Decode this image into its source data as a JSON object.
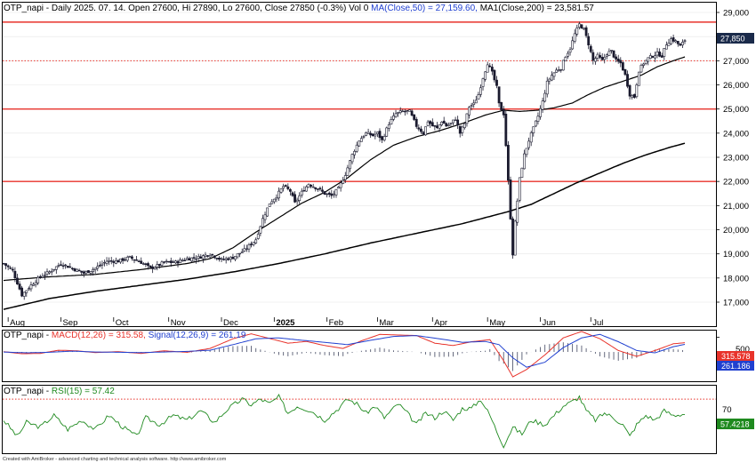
{
  "chart_data": [
    {
      "type": "candlestick",
      "header": {
        "ticker": "OTP_napi",
        "period": "Daily",
        "date": "2025. 07. 14.",
        "open_label": "Open 27600,",
        "high_label": "Hi 27890,",
        "low_label": "Lo 27600,",
        "close_label": "Close 27850 (-0.3%)",
        "vol_label": "Vol 0",
        "ma50_label": "MA(Close,50) = 27,159.60,",
        "ma200_label": "MA1(Close,200) = 23,581.57"
      },
      "last_price_badge": "27,850",
      "ylim": [
        16300,
        29200
      ],
      "y_ticks": [
        17000,
        18000,
        19000,
        20000,
        21000,
        22000,
        23000,
        24000,
        25000,
        26000,
        27000,
        28000,
        29000
      ],
      "y_tick_labels": [
        "17,000",
        "18,000",
        "19,000",
        "20,000",
        "21,000",
        "22,000",
        "23,000",
        "24,000",
        "25,000",
        "26,000",
        "27,000",
        "28,000",
        "29,000"
      ],
      "x_months": [
        "Aug",
        "Sep",
        "Oct",
        "Nov",
        "Dec",
        "2025",
        "Feb",
        "Mar",
        "Apr",
        "May",
        "Jun",
        "Jul"
      ],
      "horizontal_levels": [
        {
          "value": 28600,
          "style": "solid",
          "color": "#e8332b"
        },
        {
          "value": 27000,
          "style": "dotted",
          "color": "#e8332b"
        },
        {
          "value": 25000,
          "style": "solid",
          "color": "#e8332b"
        },
        {
          "value": 22000,
          "style": "solid",
          "color": "#e8332b"
        }
      ],
      "price_path": [
        [
          0,
          18600
        ],
        [
          4,
          18300
        ],
        [
          8,
          17300
        ],
        [
          12,
          17700
        ],
        [
          16,
          18050
        ],
        [
          20,
          18250
        ],
        [
          25,
          18600
        ],
        [
          30,
          18400
        ],
        [
          35,
          18200
        ],
        [
          40,
          18400
        ],
        [
          45,
          18700
        ],
        [
          50,
          18700
        ],
        [
          55,
          18850
        ],
        [
          60,
          18650
        ],
        [
          64,
          18400
        ],
        [
          67,
          18500
        ],
        [
          70,
          18650
        ],
        [
          75,
          18650
        ],
        [
          80,
          18800
        ],
        [
          85,
          18850
        ],
        [
          90,
          19000
        ],
        [
          95,
          18750
        ],
        [
          100,
          18850
        ],
        [
          105,
          19150
        ],
        [
          110,
          19600
        ],
        [
          113,
          20450
        ],
        [
          116,
          21100
        ],
        [
          119,
          21400
        ],
        [
          122,
          21800
        ],
        [
          125,
          21600
        ],
        [
          127,
          21100
        ],
        [
          130,
          21550
        ],
        [
          133,
          21900
        ],
        [
          137,
          21700
        ],
        [
          140,
          21500
        ],
        [
          143,
          21400
        ],
        [
          146,
          21700
        ],
        [
          149,
          22300
        ],
        [
          152,
          23100
        ],
        [
          155,
          23700
        ],
        [
          158,
          24000
        ],
        [
          161,
          23900
        ],
        [
          163,
          24000
        ],
        [
          165,
          23700
        ],
        [
          168,
          24400
        ],
        [
          171,
          24800
        ],
        [
          174,
          24900
        ],
        [
          177,
          24900
        ],
        [
          180,
          24300
        ],
        [
          183,
          24000
        ],
        [
          185,
          24500
        ],
        [
          187,
          24300
        ],
        [
          189,
          24200
        ],
        [
          191,
          24500
        ],
        [
          193,
          24300
        ],
        [
          195,
          24400
        ],
        [
          197,
          24600
        ],
        [
          199,
          24000
        ],
        [
          201,
          24400
        ],
        [
          203,
          25100
        ],
        [
          205,
          25200
        ],
        [
          207,
          25600
        ],
        [
          209,
          26300
        ],
        [
          211,
          26900
        ],
        [
          213,
          26500
        ],
        [
          215,
          25900
        ],
        [
          216,
          25200
        ],
        [
          218,
          24800
        ],
        [
          219,
          23500
        ],
        [
          220,
          22000
        ],
        [
          221,
          20500
        ],
        [
          222,
          19000
        ],
        [
          223,
          20300
        ],
        [
          225,
          22100
        ],
        [
          227,
          23100
        ],
        [
          229,
          23700
        ],
        [
          231,
          24200
        ],
        [
          233,
          24700
        ],
        [
          235,
          25300
        ],
        [
          237,
          26100
        ],
        [
          239,
          26400
        ],
        [
          241,
          26600
        ],
        [
          243,
          26700
        ],
        [
          245,
          27200
        ],
        [
          247,
          27500
        ],
        [
          249,
          28100
        ],
        [
          251,
          28500
        ],
        [
          253,
          28300
        ],
        [
          255,
          27700
        ],
        [
          257,
          27000
        ],
        [
          259,
          27200
        ],
        [
          261,
          27000
        ],
        [
          263,
          27300
        ],
        [
          265,
          27400
        ],
        [
          267,
          27000
        ],
        [
          269,
          26900
        ],
        [
          271,
          26400
        ],
        [
          273,
          25600
        ],
        [
          275,
          25500
        ],
        [
          277,
          26600
        ],
        [
          279,
          26900
        ],
        [
          281,
          27100
        ],
        [
          283,
          27200
        ],
        [
          285,
          27300
        ],
        [
          287,
          27200
        ],
        [
          289,
          27700
        ],
        [
          291,
          27900
        ],
        [
          293,
          27800
        ],
        [
          295,
          27600
        ],
        [
          297,
          27850
        ]
      ],
      "ma50_path": [
        [
          0,
          17900
        ],
        [
          20,
          18050
        ],
        [
          40,
          18150
        ],
        [
          60,
          18350
        ],
        [
          80,
          18600
        ],
        [
          90,
          18800
        ],
        [
          100,
          19250
        ],
        [
          110,
          19900
        ],
        [
          120,
          20500
        ],
        [
          130,
          21100
        ],
        [
          140,
          21550
        ],
        [
          150,
          22150
        ],
        [
          160,
          22900
        ],
        [
          170,
          23500
        ],
        [
          180,
          23850
        ],
        [
          190,
          24100
        ],
        [
          200,
          24400
        ],
        [
          210,
          24750
        ],
        [
          218,
          24950
        ],
        [
          225,
          24900
        ],
        [
          233,
          24950
        ],
        [
          240,
          25050
        ],
        [
          248,
          25250
        ],
        [
          255,
          25600
        ],
        [
          262,
          25900
        ],
        [
          270,
          26150
        ],
        [
          278,
          26400
        ],
        [
          285,
          26750
        ],
        [
          292,
          27000
        ],
        [
          297,
          27160
        ]
      ],
      "ma200_path": [
        [
          0,
          16700
        ],
        [
          20,
          17150
        ],
        [
          40,
          17450
        ],
        [
          60,
          17700
        ],
        [
          80,
          17950
        ],
        [
          100,
          18250
        ],
        [
          120,
          18600
        ],
        [
          140,
          19000
        ],
        [
          160,
          19450
        ],
        [
          180,
          19850
        ],
        [
          200,
          20250
        ],
        [
          220,
          20750
        ],
        [
          230,
          21050
        ],
        [
          240,
          21500
        ],
        [
          250,
          21950
        ],
        [
          260,
          22350
        ],
        [
          270,
          22750
        ],
        [
          280,
          23100
        ],
        [
          290,
          23400
        ],
        [
          297,
          23580
        ]
      ]
    },
    {
      "type": "line",
      "title": "OTP_napi - MACD(12,26) = 315.58, Signal(12,26,9) = 261.19",
      "label_prefix": "OTP_napi -",
      "macd_label": "MACD(12,26) = 315.58,",
      "signal_label": "Signal(12,26,9) = 261.19",
      "ylim": [
        -1000,
        700
      ],
      "y_tick": 500,
      "y_tick_label": "500",
      "macd_badge": "315.578",
      "signal_badge": "261.186",
      "macd": [
        [
          0,
          10
        ],
        [
          8,
          -60
        ],
        [
          16,
          -50
        ],
        [
          24,
          60
        ],
        [
          32,
          40
        ],
        [
          40,
          -20
        ],
        [
          50,
          10
        ],
        [
          60,
          -50
        ],
        [
          70,
          40
        ],
        [
          80,
          -10
        ],
        [
          90,
          120
        ],
        [
          100,
          450
        ],
        [
          108,
          620
        ],
        [
          116,
          460
        ],
        [
          124,
          300
        ],
        [
          132,
          360
        ],
        [
          140,
          220
        ],
        [
          148,
          120
        ],
        [
          156,
          380
        ],
        [
          164,
          600
        ],
        [
          172,
          580
        ],
        [
          180,
          560
        ],
        [
          188,
          300
        ],
        [
          196,
          220
        ],
        [
          204,
          350
        ],
        [
          212,
          420
        ],
        [
          218,
          -300
        ],
        [
          222,
          -850
        ],
        [
          228,
          -600
        ],
        [
          236,
          -100
        ],
        [
          244,
          480
        ],
        [
          252,
          700
        ],
        [
          260,
          450
        ],
        [
          268,
          50
        ],
        [
          276,
          -150
        ],
        [
          284,
          50
        ],
        [
          292,
          280
        ],
        [
          297,
          316
        ]
      ],
      "signal": [
        [
          0,
          0
        ],
        [
          10,
          -30
        ],
        [
          20,
          -10
        ],
        [
          30,
          30
        ],
        [
          40,
          0
        ],
        [
          50,
          -10
        ],
        [
          60,
          -20
        ],
        [
          70,
          0
        ],
        [
          80,
          20
        ],
        [
          90,
          60
        ],
        [
          100,
          250
        ],
        [
          110,
          450
        ],
        [
          120,
          480
        ],
        [
          130,
          400
        ],
        [
          140,
          330
        ],
        [
          150,
          250
        ],
        [
          160,
          400
        ],
        [
          170,
          530
        ],
        [
          180,
          560
        ],
        [
          190,
          450
        ],
        [
          200,
          330
        ],
        [
          210,
          360
        ],
        [
          216,
          250
        ],
        [
          222,
          -200
        ],
        [
          228,
          -520
        ],
        [
          236,
          -350
        ],
        [
          244,
          150
        ],
        [
          252,
          480
        ],
        [
          260,
          600
        ],
        [
          268,
          350
        ],
        [
          276,
          50
        ],
        [
          284,
          -30
        ],
        [
          292,
          180
        ],
        [
          297,
          261
        ]
      ]
    },
    {
      "type": "line",
      "title": "OTP_napi - RSI(15) = 57.42",
      "label_prefix": "OTP_napi -",
      "rsi_label": "RSI(15) = 57.42",
      "ylim": [
        25,
        80
      ],
      "level": 70,
      "level_label": "70",
      "rsi_badge": "57.4218",
      "rsi": [
        [
          0,
          52
        ],
        [
          6,
          38
        ],
        [
          10,
          50
        ],
        [
          16,
          46
        ],
        [
          22,
          56
        ],
        [
          28,
          44
        ],
        [
          34,
          52
        ],
        [
          40,
          44
        ],
        [
          46,
          56
        ],
        [
          52,
          46
        ],
        [
          58,
          38
        ],
        [
          62,
          54
        ],
        [
          68,
          48
        ],
        [
          74,
          56
        ],
        [
          80,
          52
        ],
        [
          86,
          60
        ],
        [
          92,
          50
        ],
        [
          98,
          62
        ],
        [
          104,
          70
        ],
        [
          108,
          65
        ],
        [
          112,
          70
        ],
        [
          116,
          66
        ],
        [
          120,
          72
        ],
        [
          124,
          58
        ],
        [
          128,
          64
        ],
        [
          134,
          60
        ],
        [
          140,
          52
        ],
        [
          146,
          62
        ],
        [
          150,
          70
        ],
        [
          154,
          66
        ],
        [
          158,
          58
        ],
        [
          162,
          64
        ],
        [
          166,
          54
        ],
        [
          172,
          66
        ],
        [
          176,
          58
        ],
        [
          180,
          48
        ],
        [
          184,
          58
        ],
        [
          188,
          54
        ],
        [
          192,
          60
        ],
        [
          196,
          52
        ],
        [
          200,
          62
        ],
        [
          204,
          62
        ],
        [
          208,
          70
        ],
        [
          212,
          56
        ],
        [
          216,
          38
        ],
        [
          218,
          30
        ],
        [
          222,
          46
        ],
        [
          226,
          40
        ],
        [
          230,
          52
        ],
        [
          236,
          48
        ],
        [
          240,
          56
        ],
        [
          244,
          64
        ],
        [
          248,
          68
        ],
        [
          251,
          72
        ],
        [
          254,
          60
        ],
        [
          258,
          52
        ],
        [
          262,
          58
        ],
        [
          266,
          54
        ],
        [
          270,
          48
        ],
        [
          273,
          38
        ],
        [
          276,
          48
        ],
        [
          280,
          56
        ],
        [
          284,
          52
        ],
        [
          288,
          60
        ],
        [
          292,
          56
        ],
        [
          297,
          57.4
        ]
      ]
    }
  ],
  "footer": "Created with AmiBroker - advanced charting and technical analysis software. http://www.amibroker.com"
}
